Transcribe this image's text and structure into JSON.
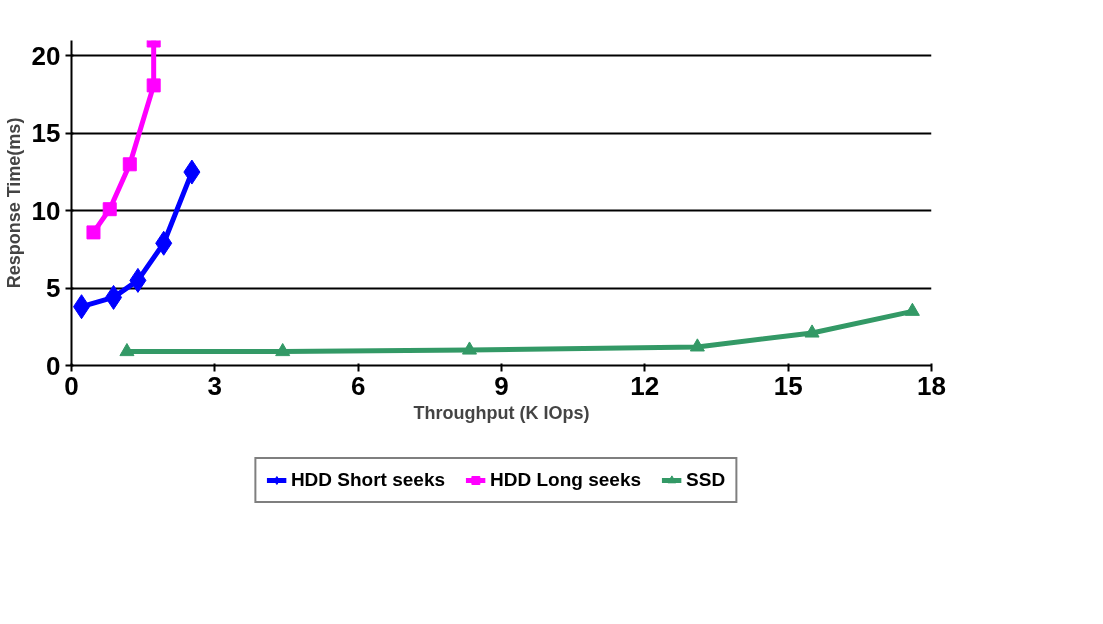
{
  "chart_data": {
    "type": "line",
    "xlabel": "Throughput (K IOps)",
    "ylabel": "Response Time(ms)",
    "xlim": [
      0,
      18
    ],
    "xticks": [
      0,
      3,
      6,
      9,
      12,
      15,
      18
    ],
    "ylim": [
      0,
      21
    ],
    "yticks": [
      0,
      5,
      10,
      15,
      20
    ],
    "grid": "y",
    "legend": "bottom",
    "series": [
      {
        "name": "HDD Short seeks",
        "color": "#0000ff",
        "marker": "diamond",
        "x": [
          0.21,
          0.88,
          1.39,
          1.93,
          2.52
        ],
        "values": [
          3.8,
          4.4,
          5.5,
          7.9,
          12.5
        ]
      },
      {
        "name": "HDD Long seeks",
        "color": "#ff00ff",
        "marker": "square",
        "x": [
          0.46,
          0.8,
          1.22,
          1.72,
          1.72
        ],
        "values": [
          8.6,
          10.1,
          13.0,
          18.1,
          21
        ]
      },
      {
        "name": "SSD",
        "color": "#339966",
        "marker": "triangle",
        "x": [
          1.16,
          4.42,
          8.33,
          13.1,
          15.5,
          17.6
        ],
        "values": [
          0.9,
          0.9,
          1.0,
          1.2,
          2.1,
          3.5
        ]
      }
    ]
  }
}
